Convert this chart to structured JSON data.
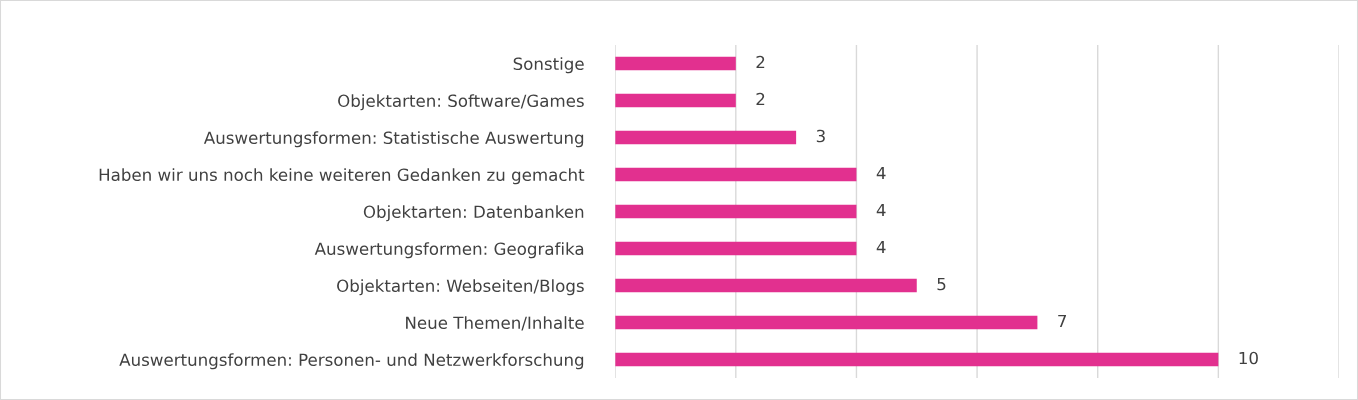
{
  "chart_data": {
    "type": "bar",
    "orientation": "horizontal",
    "categories": [
      "Sonstige",
      "Objektarten: Software/Games",
      "Auswertungsformen: Statistische Auswertung",
      "Haben wir uns noch keine weiteren Gedanken zu gemacht",
      "Objektarten: Datenbanken",
      "Auswertungsformen: Geografika",
      "Objektarten: Webseiten/Blogs",
      "Neue Themen/Inhalte",
      "Auswertungsformen: Personen- und Netzwerkforschung"
    ],
    "values": [
      2,
      2,
      3,
      4,
      4,
      4,
      5,
      7,
      10
    ],
    "color": "#e2308f",
    "xlim": [
      0,
      12
    ],
    "xticks": [
      {
        "value": 0,
        "label": null
      },
      {
        "value": 2,
        "label": null
      },
      {
        "value": 4,
        "label": null
      },
      {
        "value": 6,
        "label": null
      },
      {
        "value": 8,
        "label": null
      },
      {
        "value": 10,
        "label": null
      },
      {
        "value": 12,
        "label": null
      }
    ],
    "tick_labels": "y",
    "grid": "x",
    "data_labels": true
  }
}
